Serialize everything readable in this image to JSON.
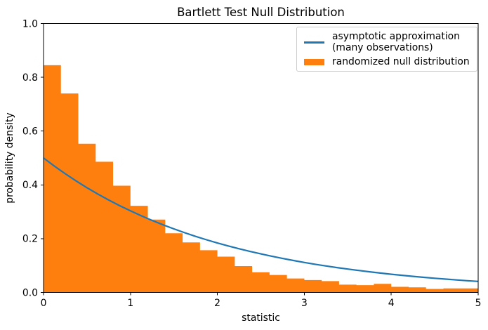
{
  "chart_data": {
    "type": "histogram+line",
    "title": "Bartlett Test Null Distribution",
    "xlabel": "statistic",
    "ylabel": "probability density",
    "xlim": [
      0,
      5
    ],
    "ylim": [
      0,
      1.0
    ],
    "grid": false,
    "legend_position": "upper right",
    "x_ticks": [
      {
        "v": 0,
        "label": "0"
      },
      {
        "v": 1,
        "label": "1"
      },
      {
        "v": 2,
        "label": "2"
      },
      {
        "v": 3,
        "label": "3"
      },
      {
        "v": 4,
        "label": "4"
      },
      {
        "v": 5,
        "label": "5"
      }
    ],
    "y_ticks": [
      {
        "v": 0.0,
        "label": "0.0"
      },
      {
        "v": 0.2,
        "label": "0.2"
      },
      {
        "v": 0.4,
        "label": "0.4"
      },
      {
        "v": 0.6,
        "label": "0.6"
      },
      {
        "v": 0.8,
        "label": "0.8"
      },
      {
        "v": 1.0,
        "label": "1.0"
      }
    ],
    "histogram": {
      "label": "randomized null distribution",
      "color": "#ff7f0e",
      "bin_start": 0,
      "bin_width": 0.2,
      "densities": [
        0.845,
        0.74,
        0.553,
        0.486,
        0.397,
        0.322,
        0.271,
        0.22,
        0.186,
        0.157,
        0.133,
        0.098,
        0.075,
        0.065,
        0.052,
        0.046,
        0.042,
        0.029,
        0.027,
        0.032,
        0.021,
        0.019,
        0.013,
        0.015,
        0.015
      ]
    },
    "line": {
      "label": "asymptotic approximation\n(many observations)",
      "color": "#1f77b4",
      "x": [
        0,
        0.125,
        0.25,
        0.375,
        0.5,
        0.625,
        0.75,
        0.875,
        1,
        1.125,
        1.25,
        1.375,
        1.5,
        1.625,
        1.75,
        1.875,
        2,
        2.125,
        2.25,
        2.375,
        2.5,
        2.625,
        2.75,
        2.875,
        3,
        3.125,
        3.25,
        3.375,
        3.5,
        3.625,
        3.75,
        3.875,
        4,
        4.125,
        4.25,
        4.375,
        4.5,
        4.625,
        4.75,
        4.875,
        5
      ],
      "y": [
        0.5,
        0.4697,
        0.4412,
        0.4145,
        0.3894,
        0.3658,
        0.3436,
        0.3228,
        0.3033,
        0.2849,
        0.2676,
        0.2514,
        0.2362,
        0.2219,
        0.2084,
        0.1958,
        0.1839,
        0.1728,
        0.1623,
        0.1525,
        0.1433,
        0.1346,
        0.1264,
        0.1188,
        0.1116,
        0.1048,
        0.0985,
        0.0925,
        0.0869,
        0.0816,
        0.0767,
        0.072,
        0.0677,
        0.0636,
        0.0597,
        0.0561,
        0.0527,
        0.0495,
        0.0465,
        0.0437,
        0.041
      ]
    }
  },
  "colors": {
    "line": "#1f77b4",
    "histogram": "#ff7f0e",
    "spine": "#000000",
    "legend_border": "#cccccc",
    "background": "#ffffff"
  }
}
